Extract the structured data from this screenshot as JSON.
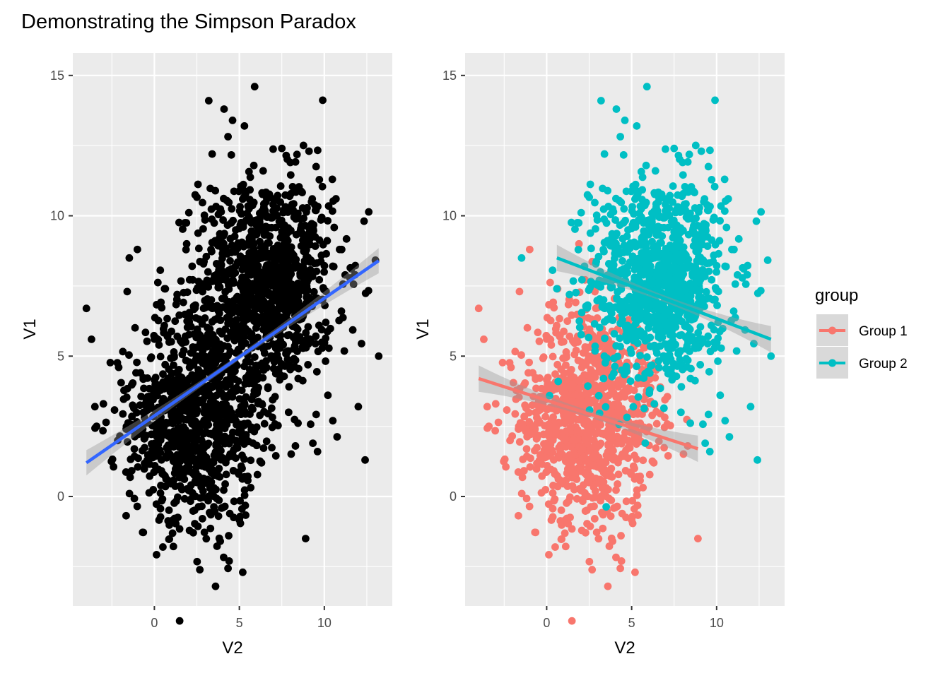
{
  "title": "Demonstrating the Simpson Paradox",
  "colors": {
    "panel_bg": "#ebebeb",
    "grid": "#ffffff",
    "points_all": "#000000",
    "fit_all": "#3366ff",
    "group1": "#f8766d",
    "group2": "#00bfc4",
    "ribbon": "#999999",
    "legend_key_bg": "#d9d9d9"
  },
  "chart_data": [
    {
      "type": "scatter",
      "panel": "left",
      "title": "",
      "xlabel": "V2",
      "ylabel": "V1",
      "xlim": [
        -4.8,
        14.0
      ],
      "ylim": [
        -3.9,
        15.8
      ],
      "xticks": [
        0,
        5,
        10
      ],
      "xtick_labels": [
        "0",
        "5",
        "10"
      ],
      "yticks": [
        0,
        5,
        10,
        15
      ],
      "ytick_labels": [
        "0",
        "5",
        "10",
        "15"
      ],
      "grid": true,
      "series": [
        {
          "points": [
            [
              3.2,
              14.1
            ],
            [
              4.1,
              13.8
            ],
            [
              4.6,
              13.4
            ],
            [
              5.3,
              13.2
            ],
            [
              5.9,
              14.6
            ],
            [
              3.4,
              12.2
            ],
            [
              7.5,
              12.4
            ],
            [
              9.1,
              12.3
            ],
            [
              6.4,
              11.6
            ],
            [
              8.0,
              11.9
            ],
            [
              -4.0,
              6.7
            ],
            [
              -3.7,
              5.6
            ],
            [
              -3.5,
              3.2
            ],
            [
              -3.4,
              2.5
            ],
            [
              -3.0,
              3.3
            ],
            [
              13.2,
              5.0
            ],
            [
              12.4,
              1.3
            ],
            [
              12.0,
              3.2
            ],
            [
              10.5,
              2.7
            ],
            [
              9.6,
              1.6
            ],
            [
              3.6,
              -3.2
            ],
            [
              5.2,
              -2.7
            ],
            [
              4.4,
              -2.3
            ],
            [
              8.9,
              -1.5
            ],
            [
              0.5,
              -1.8
            ],
            [
              -1.6,
              7.3
            ],
            [
              -2.1,
              4.6
            ],
            [
              10.9,
              8.8
            ],
            [
              11.8,
              7.9
            ],
            [
              -1.0,
              8.8
            ]
          ],
          "note": "dense cloud of roughly 2000 points centered near V2=2.5–7, V1=2–8"
        }
      ],
      "fit": {
        "method": "lm",
        "x": [
          -4.0,
          13.2
        ],
        "y": [
          1.2,
          8.4
        ]
      }
    },
    {
      "type": "scatter",
      "panel": "right",
      "title": "",
      "xlabel": "V2",
      "ylabel": "V1",
      "xlim": [
        -4.8,
        14.0
      ],
      "ylim": [
        -3.9,
        15.8
      ],
      "xticks": [
        0,
        5,
        10
      ],
      "xtick_labels": [
        "0",
        "5",
        "10"
      ],
      "yticks": [
        0,
        5,
        10,
        15
      ],
      "ytick_labels": [
        "0",
        "5",
        "10",
        "15"
      ],
      "grid": true,
      "legend": {
        "title": "group",
        "placement": "right"
      },
      "series": [
        {
          "name": "Group 1",
          "center": [
            2.5,
            2.9
          ],
          "sd": [
            2.0,
            1.9
          ],
          "points": [
            [
              -4.0,
              6.7
            ],
            [
              -3.7,
              5.6
            ],
            [
              -3.5,
              3.2
            ],
            [
              -3.4,
              2.5
            ],
            [
              -3.0,
              3.3
            ],
            [
              3.6,
              -3.2
            ],
            [
              5.2,
              -2.7
            ],
            [
              4.4,
              -2.3
            ],
            [
              8.9,
              -1.5
            ],
            [
              0.5,
              -1.8
            ],
            [
              -1.6,
              7.3
            ],
            [
              -2.1,
              4.6
            ],
            [
              -1.0,
              8.8
            ],
            [
              1.9,
              9.0
            ],
            [
              8.3,
              1.8
            ]
          ],
          "fit": {
            "method": "lm",
            "x": [
              -4.0,
              8.9
            ],
            "y": [
              4.2,
              1.7
            ]
          }
        },
        {
          "name": "Group 2",
          "center": [
            6.6,
            7.6
          ],
          "sd": [
            2.0,
            1.9
          ],
          "points": [
            [
              3.2,
              14.1
            ],
            [
              4.1,
              13.8
            ],
            [
              4.6,
              13.4
            ],
            [
              5.3,
              13.2
            ],
            [
              5.9,
              14.6
            ],
            [
              3.4,
              12.2
            ],
            [
              7.5,
              12.4
            ],
            [
              9.1,
              12.3
            ],
            [
              6.4,
              11.6
            ],
            [
              8.0,
              11.9
            ],
            [
              13.2,
              5.0
            ],
            [
              12.4,
              1.3
            ],
            [
              12.0,
              3.2
            ],
            [
              10.5,
              2.7
            ],
            [
              9.6,
              1.6
            ],
            [
              10.9,
              8.8
            ],
            [
              11.8,
              7.9
            ],
            [
              0.6,
              7.4
            ],
            [
              5.8,
              1.9
            ],
            [
              7.9,
              3.0
            ]
          ],
          "fit": {
            "method": "lm",
            "x": [
              0.6,
              13.2
            ],
            "y": [
              8.5,
              5.6
            ]
          }
        }
      ]
    }
  ]
}
